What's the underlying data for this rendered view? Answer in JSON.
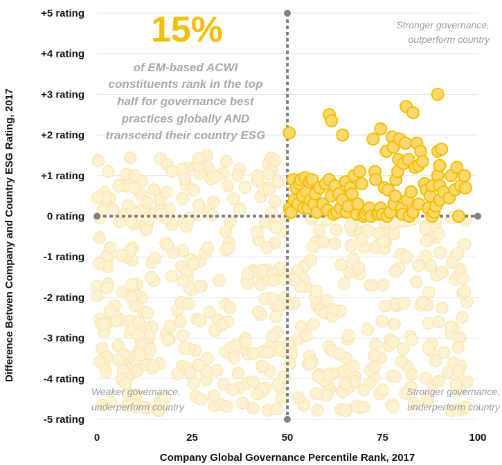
{
  "chart_data": {
    "type": "scatter",
    "xlabel": "Company Global Governance Percentile Rank, 2017",
    "ylabel": "Difference Betwen Company and Country ESG Rating, 2017",
    "xlim": [
      0,
      100
    ],
    "ylim": [
      -5,
      5
    ],
    "x_ticks": [
      {
        "value": 0,
        "label": "0"
      },
      {
        "value": 25,
        "label": "25"
      },
      {
        "value": 50,
        "label": "50"
      },
      {
        "value": 75,
        "label": "75"
      },
      {
        "value": 100,
        "label": "100"
      }
    ],
    "y_ticks": [
      {
        "value": 5,
        "label": "+5 rating"
      },
      {
        "value": 4,
        "label": "+4 rating"
      },
      {
        "value": 3,
        "label": "+3 rating"
      },
      {
        "value": 2,
        "label": "+2 rating"
      },
      {
        "value": 1,
        "label": "+1 rating"
      },
      {
        "value": 0,
        "label": "0 rating"
      },
      {
        "value": -1,
        "label": "-1 rating"
      },
      {
        "value": -2,
        "label": "-2 rating"
      },
      {
        "value": -3,
        "label": "-3 rating"
      },
      {
        "value": -4,
        "label": "-4 rating"
      },
      {
        "value": -5,
        "label": "-5 rating"
      }
    ],
    "grid": "horizontal",
    "colors": {
      "highlight_fill": "#f9d86e",
      "highlight_stroke": "#f5be00",
      "faded_fill": "#fdf2d2",
      "faded_stroke": "#fbe7b3",
      "divider": "#808080",
      "callout_number": "#f5be00",
      "callout_text": "#a8a8a8",
      "quadrant_text": "#9a9a9a"
    },
    "annotations": {
      "big_number": "15%",
      "callout_lines": [
        "of EM-based ACWI",
        "constituents rank in the top",
        "half for governance best",
        "practices globally AND",
        "transcend their country ESG"
      ],
      "quadrant_top_right": [
        "Stronger governance,",
        "outperform country"
      ],
      "quadrant_bottom_left": [
        "Weaker governance,",
        "underperform country"
      ],
      "quadrant_bottom_right": [
        "Stronger governance,",
        "underperform country"
      ]
    },
    "series": [
      {
        "role": "highlighted",
        "points": [
          [
            50.5,
            2.05
          ],
          [
            50.6,
            0.2
          ],
          [
            51.0,
            0.1
          ],
          [
            51.5,
            0.9
          ],
          [
            51.8,
            0.4
          ],
          [
            52.3,
            0.7
          ],
          [
            52.8,
            0.3
          ],
          [
            53.2,
            0.8
          ],
          [
            53.5,
            0.9
          ],
          [
            54.0,
            0.5
          ],
          [
            54.3,
            0.2
          ],
          [
            54.6,
            0.95
          ],
          [
            55.0,
            0.6
          ],
          [
            55.4,
            0.2
          ],
          [
            55.8,
            0.85
          ],
          [
            56.0,
            0.4
          ],
          [
            56.5,
            0.9
          ],
          [
            57.0,
            0.3
          ],
          [
            57.3,
            0.55
          ],
          [
            57.8,
            0.1
          ],
          [
            58.5,
            0.7
          ],
          [
            59.3,
            0.3
          ],
          [
            60.0,
            0.8
          ],
          [
            60.5,
            0.15
          ],
          [
            61.0,
            0.9
          ],
          [
            61.5,
            0.5
          ],
          [
            61.0,
            2.5
          ],
          [
            61.6,
            2.35
          ],
          [
            62.2,
            0.05
          ],
          [
            62.5,
            0.75
          ],
          [
            63.0,
            0.1
          ],
          [
            63.5,
            0.55
          ],
          [
            64.0,
            0.2
          ],
          [
            64.5,
            0.4
          ],
          [
            64.5,
            2.0
          ],
          [
            65.3,
            0.85
          ],
          [
            65.5,
            0.1
          ],
          [
            66.0,
            0.25
          ],
          [
            66.5,
            0.7
          ],
          [
            67.0,
            0.55
          ],
          [
            67.5,
            1.0
          ],
          [
            68.2,
            0.05
          ],
          [
            68.5,
            0.3
          ],
          [
            69.0,
            1.1
          ],
          [
            69.5,
            0.8
          ],
          [
            70.0,
            0.0
          ],
          [
            70.5,
            0.05
          ],
          [
            71.0,
            0.15
          ],
          [
            71.5,
            0.2
          ],
          [
            72.0,
            0.0
          ],
          [
            72.5,
            1.9
          ],
          [
            73.0,
            1.1
          ],
          [
            73.2,
            0.9
          ],
          [
            73.7,
            0.05
          ],
          [
            74.0,
            0.1
          ],
          [
            74.5,
            0.2
          ],
          [
            74.5,
            2.15
          ],
          [
            75.0,
            0.05
          ],
          [
            75.5,
            0.7
          ],
          [
            76.0,
            1.6
          ],
          [
            76.2,
            0.0
          ],
          [
            76.5,
            0.65
          ],
          [
            77.0,
            0.1
          ],
          [
            77.5,
            1.95
          ],
          [
            77.8,
            1.7
          ],
          [
            78.0,
            0.3
          ],
          [
            78.3,
            0.5
          ],
          [
            78.5,
            0.9
          ],
          [
            79.0,
            1.1
          ],
          [
            79.2,
            1.4
          ],
          [
            79.5,
            1.9
          ],
          [
            80.0,
            0.2
          ],
          [
            80.3,
            0.05
          ],
          [
            80.5,
            1.3
          ],
          [
            81.0,
            1.8
          ],
          [
            81.2,
            2.7
          ],
          [
            81.5,
            0.4
          ],
          [
            81.8,
            1.4
          ],
          [
            82.0,
            0.0
          ],
          [
            82.5,
            0.6
          ],
          [
            83.0,
            0.1
          ],
          [
            83.0,
            2.55
          ],
          [
            83.5,
            1.2
          ],
          [
            84.0,
            1.8
          ],
          [
            84.5,
            0.3
          ],
          [
            84.5,
            1.25
          ],
          [
            85.0,
            1.6
          ],
          [
            85.5,
            1.35
          ],
          [
            86.0,
            0.8
          ],
          [
            86.5,
            0.65
          ],
          [
            87.0,
            0.2
          ],
          [
            87.5,
            0.5
          ],
          [
            88.0,
            0.0
          ],
          [
            88.0,
            0.75
          ],
          [
            88.5,
            0.1
          ],
          [
            89.0,
            0.25
          ],
          [
            89.5,
            1.0
          ],
          [
            89.5,
            3.0
          ],
          [
            89.5,
            1.6
          ],
          [
            90.0,
            0.75
          ],
          [
            90.0,
            0.4
          ],
          [
            90.0,
            1.25
          ],
          [
            90.5,
            1.65
          ],
          [
            91.0,
            0.6
          ],
          [
            92.5,
            0.45
          ],
          [
            93.0,
            1.0
          ],
          [
            94.0,
            0.65
          ],
          [
            94.5,
            1.2
          ],
          [
            95.0,
            0.0
          ],
          [
            95.5,
            0.75
          ],
          [
            96.5,
            1.0
          ],
          [
            96.8,
            0.7
          ]
        ]
      },
      {
        "role": "faded",
        "generator": {
          "count": 520,
          "seed": 7,
          "x": [
            0,
            98
          ],
          "y": [
            -4.8,
            1.5
          ],
          "exclude_quadrant": "top-right"
        }
      }
    ]
  }
}
